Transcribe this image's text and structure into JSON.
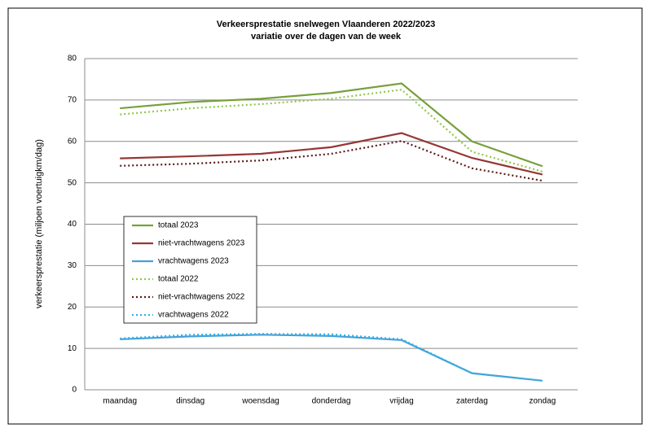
{
  "chart_data": {
    "type": "line",
    "title": "Verkeersprestatie snelwegen Vlaanderen 2022/2023",
    "subtitle": "variatie over de dagen van de week",
    "y_label": "verkeersprestatie (miljoen voertuigkm/dag)",
    "categories": [
      "maandag",
      "dinsdag",
      "woensdag",
      "donderdag",
      "vrijdag",
      "zaterdag",
      "zondag"
    ],
    "series": [
      {
        "name": "totaal 2023",
        "color": "#77a03c",
        "style": "solid",
        "values": [
          68,
          69.5,
          70.3,
          71.7,
          74,
          60,
          54
        ]
      },
      {
        "name": "niet-vrachtwagens 2023",
        "color": "#953735",
        "style": "solid",
        "values": [
          55.9,
          56.4,
          57,
          58.6,
          62,
          56,
          52
        ]
      },
      {
        "name": "vrachtwagens 2023",
        "color": "#4a9fd8",
        "style": "solid",
        "values": [
          12.2,
          12.9,
          13.3,
          13,
          12,
          4,
          2.2
        ]
      },
      {
        "name": "totaal 2022",
        "color": "#8fc84a",
        "style": "dotted",
        "values": [
          66.5,
          68,
          69,
          70.3,
          72.5,
          57.5,
          52.7
        ]
      },
      {
        "name": "niet-vrachtwagens 2022",
        "color": "#5c1a1a",
        "style": "dotted",
        "values": [
          54.1,
          54.6,
          55.4,
          57,
          60.1,
          53.5,
          50.5
        ]
      },
      {
        "name": "vrachtwagens 2022",
        "color": "#2eb4e6",
        "style": "dotted",
        "values": [
          12.4,
          13.3,
          13.5,
          13.4,
          12.2,
          4,
          2.2
        ]
      }
    ],
    "ylim": [
      0,
      80
    ],
    "yticks": [
      0,
      10,
      20,
      30,
      40,
      50,
      60,
      70,
      80
    ],
    "grid": true,
    "legend": "inside-left"
  }
}
